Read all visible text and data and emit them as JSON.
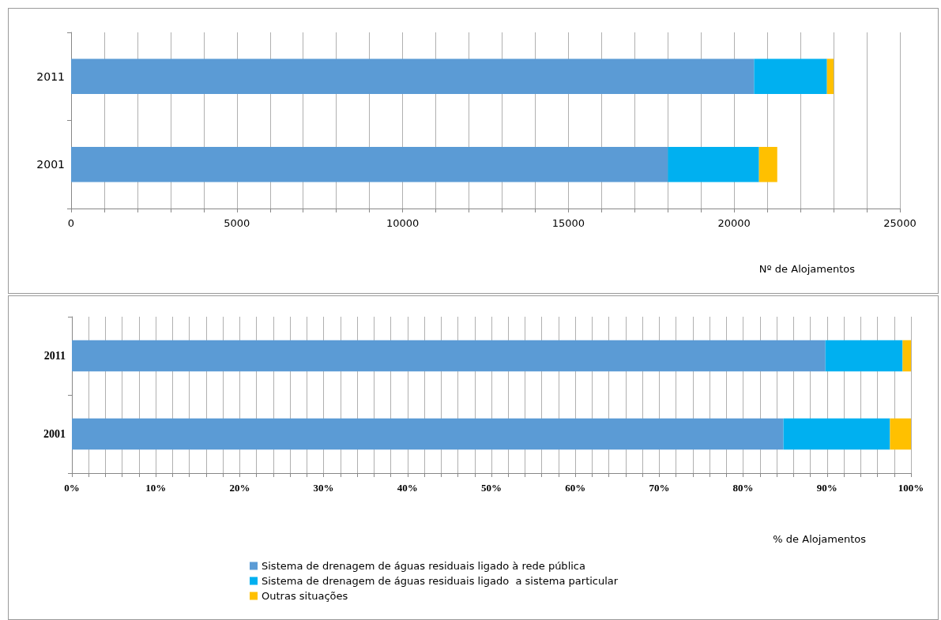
{
  "chart_data": [
    {
      "type": "bar",
      "orientation": "horizontal",
      "stacked": true,
      "categories": [
        "2011",
        "2001"
      ],
      "xlabel": "Nº de Alojamentos",
      "series": [
        {
          "color": "#5b9bd5",
          "values": [
            20600,
            18000
          ]
        },
        {
          "color": "#00b0f0",
          "values": [
            2200,
            2750
          ]
        },
        {
          "color": "#ffc000",
          "values": [
            200,
            550
          ]
        }
      ],
      "xlim": [
        0,
        25000
      ],
      "xticks": [
        0,
        {
          "value": 1000,
          "label": null
        },
        {
          "value": 2000,
          "label": null
        },
        {
          "value": 3000,
          "label": null
        },
        {
          "value": 4000,
          "label": null
        },
        5000,
        {
          "value": 6000,
          "label": null
        },
        {
          "value": 7000,
          "label": null
        },
        {
          "value": 8000,
          "label": null
        },
        {
          "value": 9000,
          "label": null
        },
        10000,
        {
          "value": 11000,
          "label": null
        },
        {
          "value": 12000,
          "label": null
        },
        {
          "value": 13000,
          "label": null
        },
        {
          "value": 14000,
          "label": null
        },
        15000,
        {
          "value": 16000,
          "label": null
        },
        {
          "value": 17000,
          "label": null
        },
        {
          "value": 18000,
          "label": null
        },
        {
          "value": 19000,
          "label": null
        },
        20000,
        {
          "value": 21000,
          "label": null
        },
        {
          "value": 22000,
          "label": null
        },
        {
          "value": 23000,
          "label": null
        },
        {
          "value": 24000,
          "label": null
        },
        25000
      ],
      "grid": "x"
    },
    {
      "type": "bar",
      "orientation": "horizontal",
      "stacked": true,
      "categories": [
        "2011",
        "2001"
      ],
      "xlabel": "% de Alojamentos",
      "series": [
        {
          "name": "Sistema de drenagem de águas residuais ligado à rede pública",
          "color": "#5b9bd5",
          "values": [
            89.8,
            84.8
          ]
        },
        {
          "name": "Sistema de drenagem de águas residuais ligado  a sistema particular",
          "color": "#00b0f0",
          "values": [
            9.2,
            12.7
          ]
        },
        {
          "name": "Outras situações",
          "color": "#ffc000",
          "values": [
            1.0,
            2.5
          ]
        }
      ],
      "xlim": [
        0,
        100
      ],
      "xticks": [
        {
          "value": 0,
          "label": "0%"
        },
        {
          "value": 2,
          "label": null
        },
        {
          "value": 4,
          "label": null
        },
        {
          "value": 6,
          "label": null
        },
        {
          "value": 8,
          "label": null
        },
        {
          "value": 10,
          "label": "10%"
        },
        {
          "value": 12,
          "label": null
        },
        {
          "value": 14,
          "label": null
        },
        {
          "value": 16,
          "label": null
        },
        {
          "value": 18,
          "label": null
        },
        {
          "value": 20,
          "label": "20%"
        },
        {
          "value": 22,
          "label": null
        },
        {
          "value": 24,
          "label": null
        },
        {
          "value": 26,
          "label": null
        },
        {
          "value": 28,
          "label": null
        },
        {
          "value": 30,
          "label": "30%"
        },
        {
          "value": 32,
          "label": null
        },
        {
          "value": 34,
          "label": null
        },
        {
          "value": 36,
          "label": null
        },
        {
          "value": 38,
          "label": null
        },
        {
          "value": 40,
          "label": "40%"
        },
        {
          "value": 42,
          "label": null
        },
        {
          "value": 44,
          "label": null
        },
        {
          "value": 46,
          "label": null
        },
        {
          "value": 48,
          "label": null
        },
        {
          "value": 50,
          "label": "50%"
        },
        {
          "value": 52,
          "label": null
        },
        {
          "value": 54,
          "label": null
        },
        {
          "value": 56,
          "label": null
        },
        {
          "value": 58,
          "label": null
        },
        {
          "value": 60,
          "label": "60%"
        },
        {
          "value": 62,
          "label": null
        },
        {
          "value": 64,
          "label": null
        },
        {
          "value": 66,
          "label": null
        },
        {
          "value": 68,
          "label": null
        },
        {
          "value": 70,
          "label": "70%"
        },
        {
          "value": 72,
          "label": null
        },
        {
          "value": 74,
          "label": null
        },
        {
          "value": 76,
          "label": null
        },
        {
          "value": 78,
          "label": null
        },
        {
          "value": 80,
          "label": "80%"
        },
        {
          "value": 82,
          "label": null
        },
        {
          "value": 84,
          "label": null
        },
        {
          "value": 86,
          "label": null
        },
        {
          "value": 88,
          "label": null
        },
        {
          "value": 90,
          "label": "90%"
        },
        {
          "value": 92,
          "label": null
        },
        {
          "value": 94,
          "label": null
        },
        {
          "value": 96,
          "label": null
        },
        {
          "value": 98,
          "label": null
        },
        {
          "value": 100,
          "label": "100%"
        }
      ],
      "grid": "x",
      "legend": "bottom"
    }
  ]
}
